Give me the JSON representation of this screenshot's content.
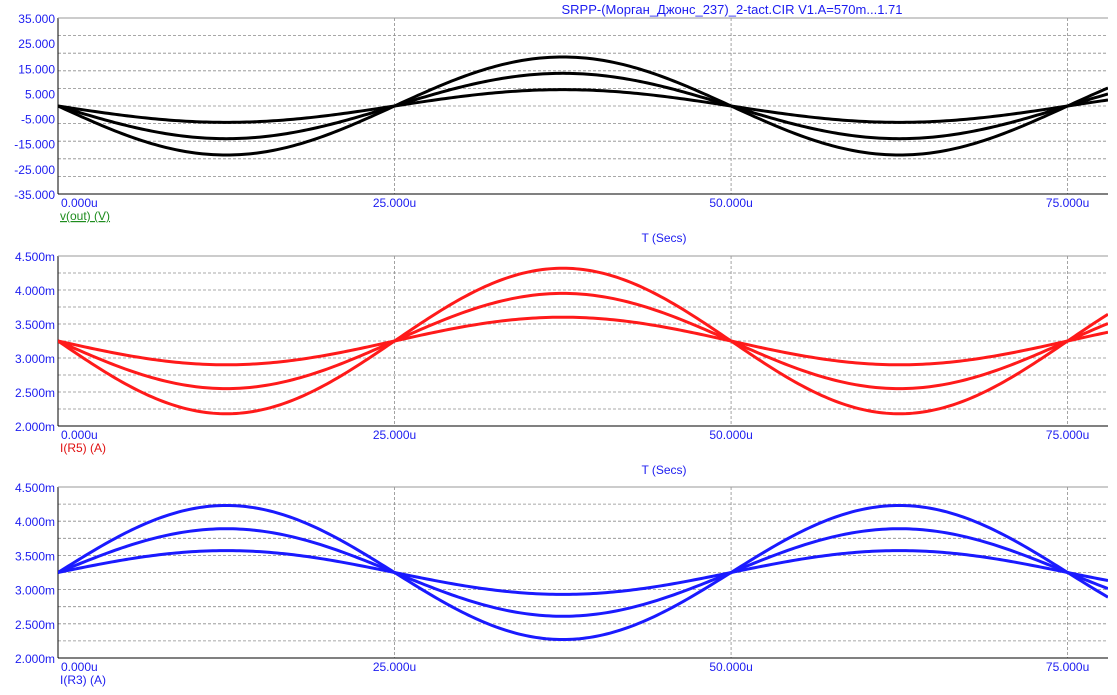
{
  "window_title": "SRPP-(Морган_Джонс_237)_2-tact.CIR V1.A=570m...1.71",
  "chart_data": [
    {
      "type": "line",
      "id": "vout",
      "trace_label": "v(out) (V)",
      "trace_label_color": "#1e8c1e",
      "xlabel": "T (Secs)",
      "ylabel": "",
      "xlim": [
        0,
        78
      ],
      "ylim": [
        -35,
        35
      ],
      "x_ticks": [
        0,
        25,
        50,
        75
      ],
      "x_tick_labels": [
        "0.000u",
        "25.000u",
        "50.000u",
        "75.000u"
      ],
      "y_ticks": [
        35,
        25,
        15,
        5,
        -5,
        -15,
        -25,
        -35
      ],
      "y_tick_labels": [
        "35.000",
        "25.000",
        "15.000",
        "5.000",
        "-5.000",
        "-15.000",
        "-25.000",
        "-35.000"
      ],
      "grid": true,
      "color": "#000000",
      "waveform": {
        "offset": 0,
        "period_us": 50,
        "phase": -1
      },
      "series": [
        {
          "amplitude": 19.5
        },
        {
          "amplitude": 13.0
        },
        {
          "amplitude": 6.5
        }
      ]
    },
    {
      "type": "line",
      "id": "ir5",
      "trace_label": "I(R5) (A)",
      "trace_label_color": "#e01010",
      "xlabel": "T (Secs)",
      "ylabel": "",
      "xlim": [
        0,
        78
      ],
      "ylim": [
        2.0,
        4.5
      ],
      "x_ticks": [
        0,
        25,
        50,
        75
      ],
      "x_tick_labels": [
        "0.000u",
        "25.000u",
        "50.000u",
        "75.000u"
      ],
      "y_ticks": [
        4.5,
        4.0,
        3.5,
        3.0,
        2.5,
        2.0
      ],
      "y_tick_labels": [
        "4.500m",
        "4.000m",
        "3.500m",
        "3.000m",
        "2.500m",
        "2.000m"
      ],
      "grid": true,
      "color": "#ff1a1a",
      "waveform": {
        "offset": 3.25,
        "period_us": 50,
        "phase": -1
      },
      "series": [
        {
          "amplitude": 1.07
        },
        {
          "amplitude": 0.7
        },
        {
          "amplitude": 0.35
        }
      ]
    },
    {
      "type": "line",
      "id": "ir3",
      "trace_label": "I(R3) (A)",
      "trace_label_color": "#1c1cf0",
      "xlabel": "",
      "ylabel": "",
      "xlim": [
        0,
        78
      ],
      "ylim": [
        2.0,
        4.5
      ],
      "x_ticks": [
        0,
        25,
        50,
        75
      ],
      "x_tick_labels": [
        "0.000u",
        "25.000u",
        "50.000u",
        "75.000u"
      ],
      "y_ticks": [
        4.5,
        4.0,
        3.5,
        3.0,
        2.5,
        2.0
      ],
      "y_tick_labels": [
        "4.500m",
        "4.000m",
        "3.500m",
        "3.000m",
        "2.500m",
        "2.000m"
      ],
      "grid": true,
      "color": "#1a1aff",
      "waveform": {
        "offset": 3.25,
        "period_us": 50,
        "phase": 1
      },
      "series": [
        {
          "amplitude": 0.98
        },
        {
          "amplitude": 0.64
        },
        {
          "amplitude": 0.32
        }
      ]
    }
  ]
}
